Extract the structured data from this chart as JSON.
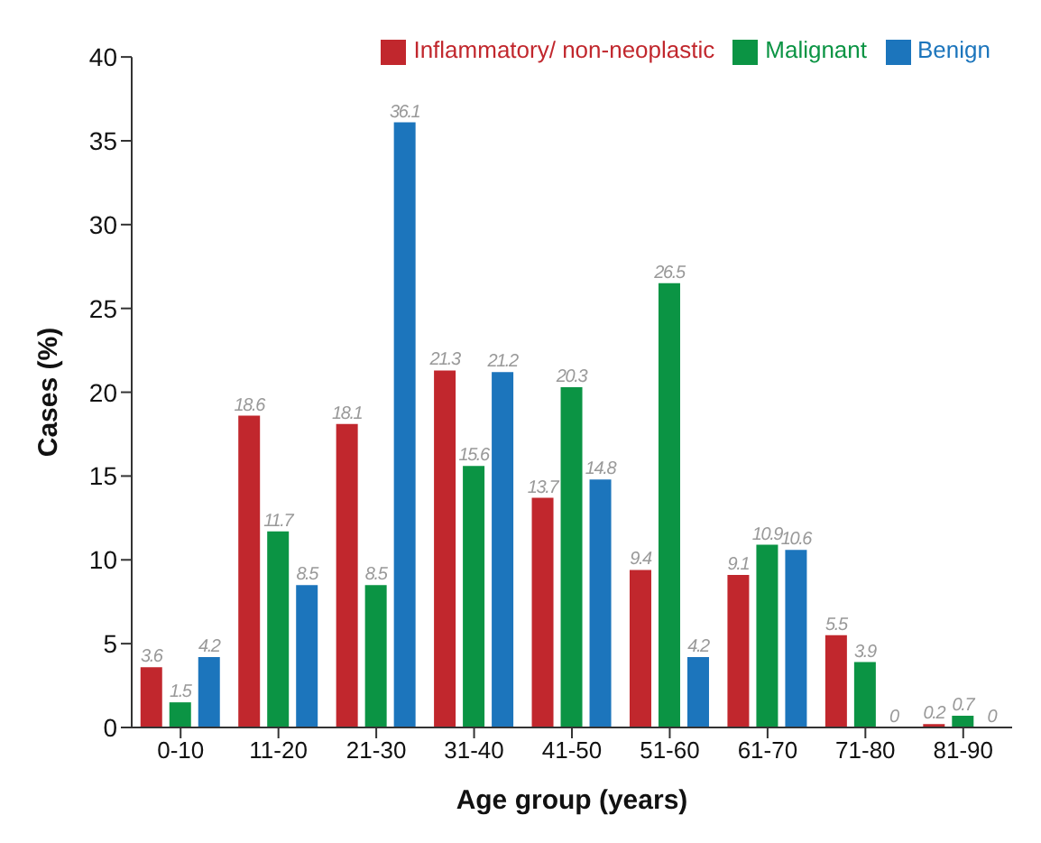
{
  "chart_data": {
    "type": "bar",
    "xlabel": "Age group (years)",
    "ylabel": "Cases (%)",
    "categories": [
      "0-10",
      "11-20",
      "21-30",
      "31-40",
      "41-50",
      "51-60",
      "61-70",
      "71-80",
      "81-90"
    ],
    "series": [
      {
        "name": "Inflammatory/ non-neoplastic",
        "color": "#c1272d",
        "values": [
          3.6,
          18.6,
          18.1,
          21.3,
          13.7,
          9.4,
          9.1,
          5.5,
          0.2
        ]
      },
      {
        "name": "Malignant",
        "color": "#0b9444",
        "values": [
          1.5,
          11.7,
          8.5,
          15.6,
          20.3,
          26.5,
          10.9,
          3.9,
          0.7
        ]
      },
      {
        "name": "Benign",
        "color": "#1c75bc",
        "values": [
          4.2,
          8.5,
          36.1,
          21.2,
          14.8,
          4.2,
          10.6,
          0,
          0
        ]
      }
    ],
    "ylim": [
      0,
      40
    ],
    "yticks": [
      0,
      5,
      10,
      15,
      20,
      25,
      30,
      35,
      40
    ],
    "data_labels": true,
    "legend": "top right",
    "grid": false
  }
}
